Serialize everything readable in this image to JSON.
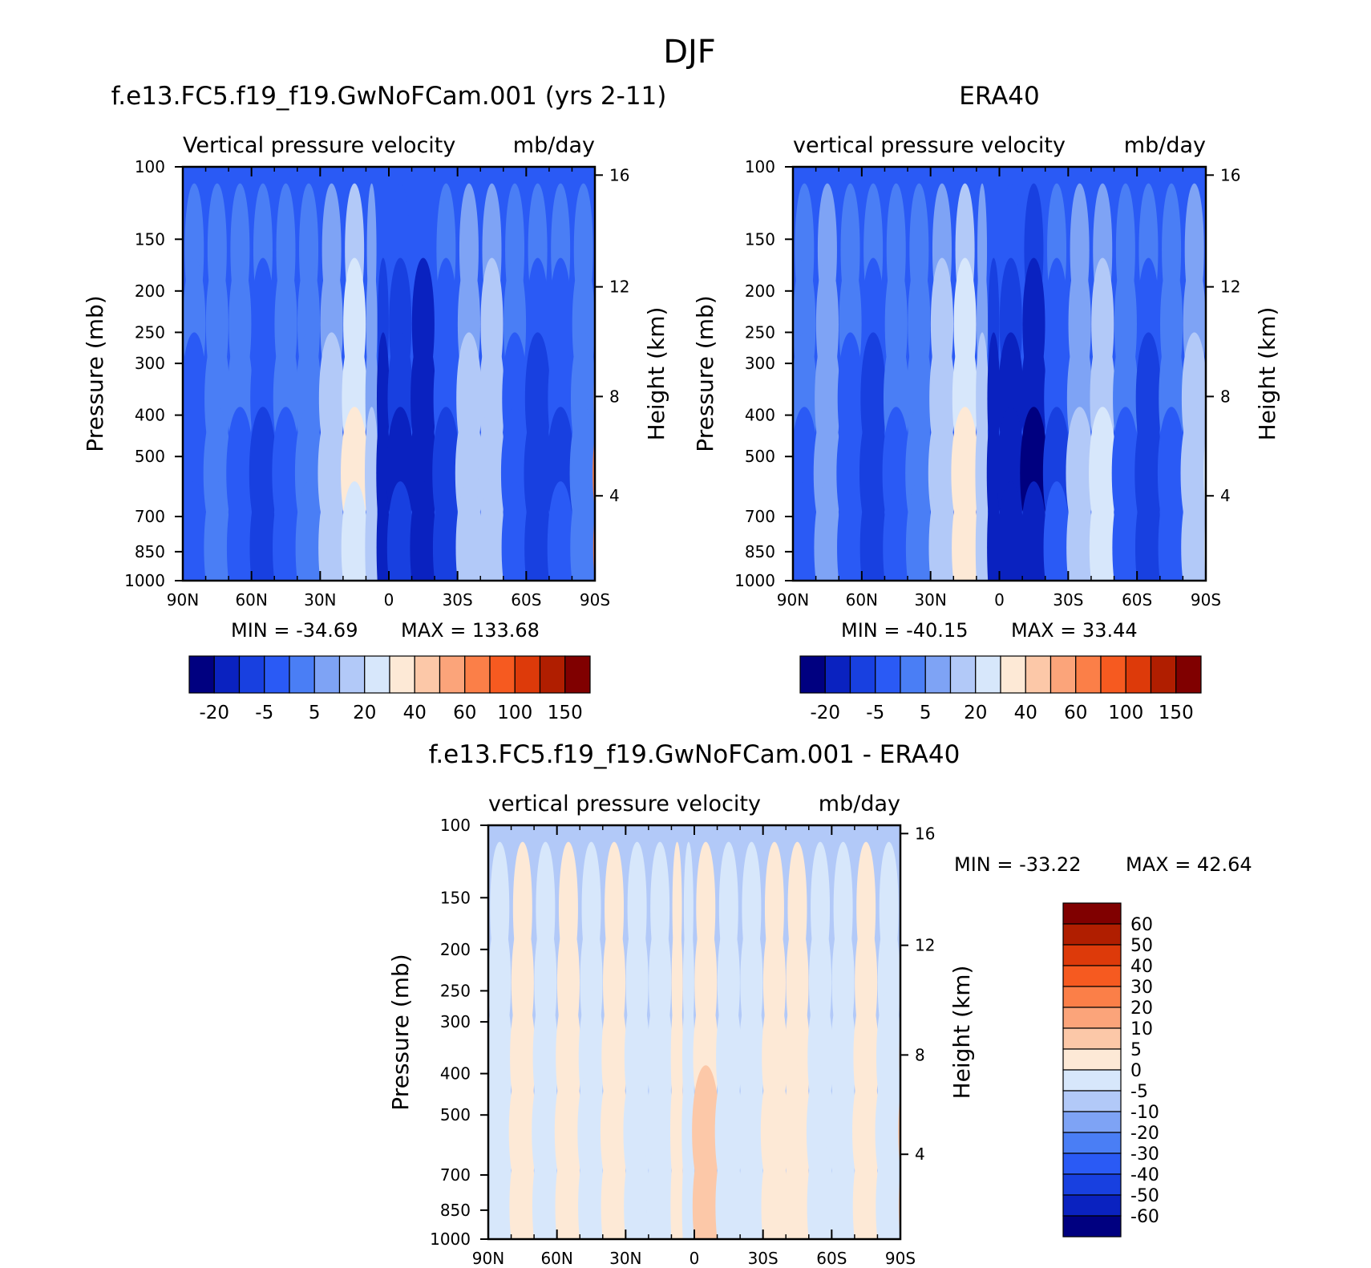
{
  "page": {
    "title": "DJF"
  },
  "chart_data": [
    {
      "type": "contour",
      "title": "f.e13.FC5.f19_f19.GwNoFCam.001 (yrs 2-11)",
      "subtitle_left": "Vertical pressure velocity",
      "subtitle_right": "mb/day",
      "ylabel": "Pressure (mb)",
      "y2label": "Height (km)",
      "x_ticks": [
        "90N",
        "60N",
        "30N",
        "0",
        "30S",
        "60S",
        "90S"
      ],
      "y_ticks": [
        "100",
        "150",
        "200",
        "250",
        "300",
        "400",
        "500",
        "700",
        "850",
        "1000"
      ],
      "y2_ticks": [
        "16",
        "12",
        "8",
        "4"
      ],
      "stats": {
        "min_label": "MIN = -34.69",
        "max_label": "MAX = 133.68"
      },
      "colorbar_levels": [
        -40,
        -20,
        -10,
        -5,
        0,
        5,
        10,
        20,
        30,
        40,
        50,
        60,
        80,
        100,
        125,
        150
      ],
      "colorbar_labels": [
        "-20",
        "-5",
        "5",
        "20",
        "40",
        "60",
        "100",
        "150"
      ],
      "colors": [
        "#000080",
        "#0a22c0",
        "#1840e0",
        "#2a5af5",
        "#4a7ef5",
        "#7ea3f5",
        "#b2c9f8",
        "#d7e7fb",
        "#fde9d6",
        "#fcc8a8",
        "#fba47a",
        "#fb7f48",
        "#f65a20",
        "#dd3a0a",
        "#b01e00",
        "#800000"
      ],
      "field": {
        "description": "vertical pressure velocity, lat from 90N to 90S",
        "columns": [
          {
            "lat": 90,
            "value": -8
          },
          {
            "lat": 80,
            "value": -2
          },
          {
            "lat": 70,
            "value": -6
          },
          {
            "lat": 60,
            "value": -12
          },
          {
            "lat": 50,
            "value": -6
          },
          {
            "lat": 40,
            "value": -3
          },
          {
            "lat": 30,
            "value": 8
          },
          {
            "lat": 20,
            "value": 22
          },
          {
            "lat": 10,
            "value": 6
          },
          {
            "lat": 5,
            "value": -25
          },
          {
            "lat": 0,
            "value": -20
          },
          {
            "lat": -10,
            "value": -38
          },
          {
            "lat": -20,
            "value": -12
          },
          {
            "lat": -30,
            "value": 8
          },
          {
            "lat": -40,
            "value": 10
          },
          {
            "lat": -50,
            "value": -8
          },
          {
            "lat": -60,
            "value": -18
          },
          {
            "lat": -70,
            "value": -10
          },
          {
            "lat": -80,
            "value": -4
          },
          {
            "lat": -90,
            "value": 60
          }
        ]
      }
    },
    {
      "type": "contour",
      "title": "ERA40",
      "subtitle_left": "vertical pressure velocity",
      "subtitle_right": "mb/day",
      "ylabel": "Pressure (mb)",
      "y2label": "Height (km)",
      "x_ticks": [
        "90N",
        "60N",
        "30N",
        "0",
        "30S",
        "60S",
        "90S"
      ],
      "y_ticks": [
        "100",
        "150",
        "200",
        "250",
        "300",
        "400",
        "500",
        "700",
        "850",
        "1000"
      ],
      "y2_ticks": [
        "16",
        "12",
        "8",
        "4"
      ],
      "stats": {
        "min_label": "MIN = -40.15",
        "max_label": "MAX =  33.44"
      },
      "colorbar_levels": [
        -40,
        -20,
        -10,
        -5,
        0,
        5,
        10,
        20,
        30,
        40,
        50,
        60,
        80,
        100,
        125,
        150
      ],
      "colorbar_labels": [
        "-20",
        "-5",
        "5",
        "20",
        "40",
        "60",
        "100",
        "150"
      ],
      "colors": [
        "#000080",
        "#0a22c0",
        "#1840e0",
        "#2a5af5",
        "#4a7ef5",
        "#7ea3f5",
        "#b2c9f8",
        "#d7e7fb",
        "#fde9d6",
        "#fcc8a8",
        "#fba47a",
        "#fb7f48",
        "#f65a20",
        "#dd3a0a",
        "#b01e00",
        "#800000"
      ],
      "field": {
        "description": "vertical pressure velocity, lat from 90N to 90S",
        "columns": [
          {
            "lat": 90,
            "value": -6
          },
          {
            "lat": 80,
            "value": 4
          },
          {
            "lat": 70,
            "value": -8
          },
          {
            "lat": 60,
            "value": -15
          },
          {
            "lat": 50,
            "value": -6
          },
          {
            "lat": 40,
            "value": -2
          },
          {
            "lat": 30,
            "value": 10
          },
          {
            "lat": 20,
            "value": 25
          },
          {
            "lat": 10,
            "value": 8
          },
          {
            "lat": 5,
            "value": -25
          },
          {
            "lat": 0,
            "value": -28
          },
          {
            "lat": -10,
            "value": -40
          },
          {
            "lat": -20,
            "value": -10
          },
          {
            "lat": -30,
            "value": 6
          },
          {
            "lat": -40,
            "value": 12
          },
          {
            "lat": -50,
            "value": -6
          },
          {
            "lat": -60,
            "value": -14
          },
          {
            "lat": -70,
            "value": -6
          },
          {
            "lat": -80,
            "value": 8
          },
          {
            "lat": -90,
            "value": 20
          }
        ]
      }
    },
    {
      "type": "contour",
      "title": "f.e13.FC5.f19_f19.GwNoFCam.001 - ERA40",
      "subtitle_left": "vertical pressure velocity",
      "subtitle_right": "mb/day",
      "ylabel": "Pressure (mb)",
      "y2label": "Height (km)",
      "x_ticks": [
        "90N",
        "60N",
        "30N",
        "0",
        "30S",
        "60S",
        "90S"
      ],
      "y_ticks": [
        "100",
        "150",
        "200",
        "250",
        "300",
        "400",
        "500",
        "700",
        "850",
        "1000"
      ],
      "y2_ticks": [
        "16",
        "12",
        "8",
        "4"
      ],
      "stats": {
        "min_label": "MIN = -33.22",
        "max_label": "MAX =  42.64"
      },
      "colorbar_levels": [
        -60,
        -50,
        -40,
        -30,
        -20,
        -10,
        -5,
        0,
        5,
        10,
        20,
        30,
        40,
        50,
        60
      ],
      "colorbar_labels": [
        "60",
        "50",
        "40",
        "30",
        "20",
        "10",
        "5",
        "0",
        "-5",
        "-10",
        "-20",
        "-30",
        "-40",
        "-50",
        "-60"
      ],
      "colors": [
        "#000080",
        "#0a22c0",
        "#1840e0",
        "#2a5af5",
        "#4a7ef5",
        "#7ea3f5",
        "#b2c9f8",
        "#d7e7fb",
        "#fde9d6",
        "#fcc8a8",
        "#fba47a",
        "#fb7f48",
        "#f65a20",
        "#dd3a0a",
        "#b01e00",
        "#800000"
      ],
      "field": {
        "description": "model minus ERA40, lat from 90N to 90S",
        "columns": [
          {
            "lat": 90,
            "value": -2
          },
          {
            "lat": 80,
            "value": 2
          },
          {
            "lat": 70,
            "value": -2
          },
          {
            "lat": 60,
            "value": 3
          },
          {
            "lat": 50,
            "value": -2
          },
          {
            "lat": 40,
            "value": 2
          },
          {
            "lat": 30,
            "value": -3
          },
          {
            "lat": 20,
            "value": -1
          },
          {
            "lat": 10,
            "value": 2
          },
          {
            "lat": 5,
            "value": -3
          },
          {
            "lat": 0,
            "value": 6
          },
          {
            "lat": -10,
            "value": -4
          },
          {
            "lat": -20,
            "value": -2
          },
          {
            "lat": -30,
            "value": 3
          },
          {
            "lat": -40,
            "value": 2
          },
          {
            "lat": -50,
            "value": -3
          },
          {
            "lat": -60,
            "value": -4
          },
          {
            "lat": -70,
            "value": 2
          },
          {
            "lat": -80,
            "value": -2
          },
          {
            "lat": -90,
            "value": 8
          }
        ]
      }
    }
  ]
}
